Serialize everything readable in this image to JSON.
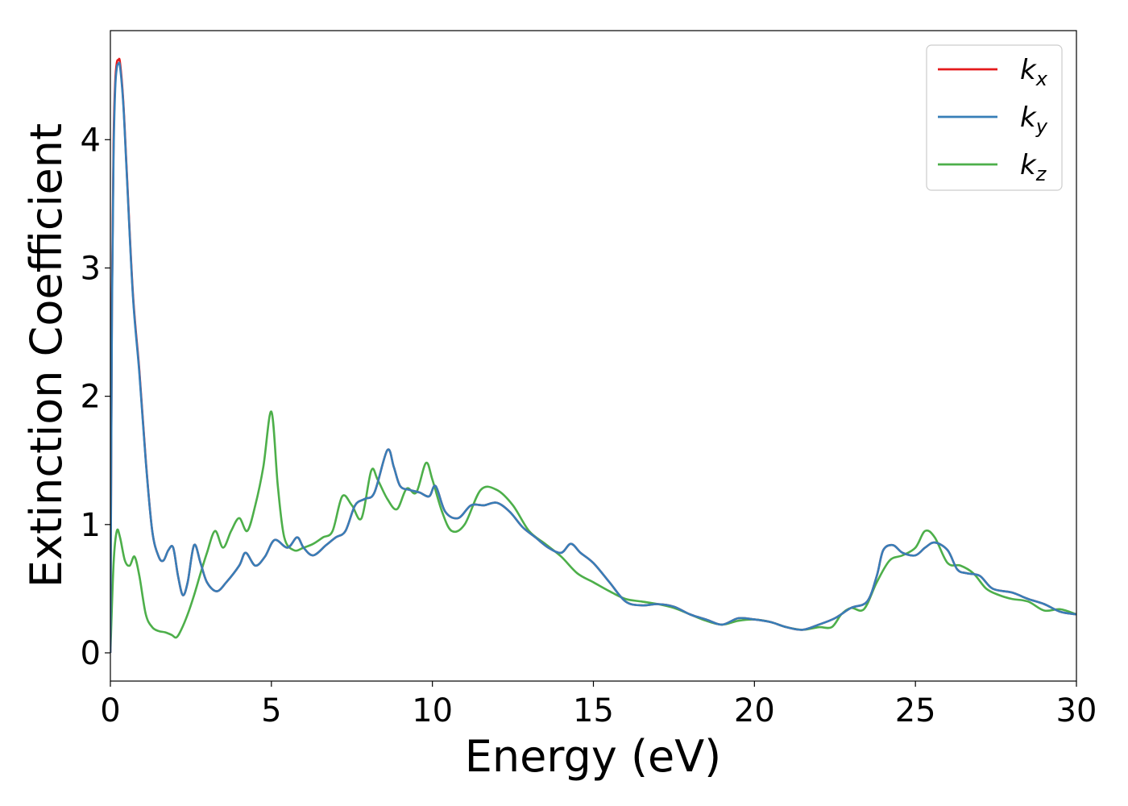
{
  "chart_data": {
    "type": "line",
    "title": "",
    "xlabel": "Energy (eV)",
    "ylabel": "Extinction Coefficient",
    "xlim": [
      0,
      30
    ],
    "ylim": [
      -0.22,
      4.85
    ],
    "xticks": [
      0,
      5,
      10,
      15,
      20,
      25,
      30
    ],
    "yticks": [
      0,
      1,
      2,
      3,
      4
    ],
    "grid": false,
    "legend": {
      "placement": "top-right",
      "entries": [
        {
          "base": "k",
          "sub": "x"
        },
        {
          "base": "k",
          "sub": "y"
        },
        {
          "base": "k",
          "sub": "z"
        }
      ]
    },
    "series": [
      {
        "name": "k_x",
        "color": "#e41a1c",
        "x": [
          0,
          0.05,
          0.1,
          0.15,
          0.2,
          0.25,
          0.3,
          0.4,
          0.5,
          0.7,
          0.9,
          1.1,
          1.3,
          1.5,
          1.65,
          1.8,
          1.95,
          2.1,
          2.25,
          2.4,
          2.6,
          2.8,
          3.0,
          3.3,
          3.6,
          4.0,
          4.2,
          4.5,
          4.8,
          5.1,
          5.5,
          5.8,
          6.0,
          6.3,
          6.7,
          7.0,
          7.3,
          7.6,
          7.9,
          8.2,
          8.6,
          8.8,
          9.0,
          9.3,
          9.6,
          9.9,
          10.1,
          10.4,
          10.8,
          11.2,
          11.6,
          12.0,
          12.4,
          12.8,
          13.2,
          13.6,
          14.0,
          14.3,
          14.6,
          15.0,
          15.5,
          16.0,
          16.5,
          17.0,
          17.5,
          18.0,
          18.5,
          19.0,
          19.5,
          20.0,
          20.5,
          21.0,
          21.5,
          22.0,
          22.5,
          23.0,
          23.5,
          23.8,
          24.0,
          24.3,
          24.6,
          25.0,
          25.3,
          25.6,
          26.0,
          26.3,
          26.6,
          27.0,
          27.4,
          28.0,
          28.5,
          29.0,
          29.5,
          30.0
        ],
        "y": [
          0,
          2.8,
          4.0,
          4.45,
          4.6,
          4.62,
          4.6,
          4.3,
          3.8,
          2.8,
          2.2,
          1.5,
          0.95,
          0.75,
          0.72,
          0.8,
          0.82,
          0.6,
          0.45,
          0.55,
          0.84,
          0.7,
          0.55,
          0.48,
          0.55,
          0.68,
          0.78,
          0.68,
          0.75,
          0.88,
          0.82,
          0.9,
          0.82,
          0.76,
          0.84,
          0.9,
          0.95,
          1.15,
          1.2,
          1.25,
          1.58,
          1.45,
          1.3,
          1.27,
          1.25,
          1.22,
          1.3,
          1.1,
          1.05,
          1.15,
          1.15,
          1.17,
          1.1,
          0.98,
          0.9,
          0.82,
          0.78,
          0.85,
          0.78,
          0.7,
          0.55,
          0.4,
          0.37,
          0.38,
          0.36,
          0.3,
          0.26,
          0.22,
          0.27,
          0.26,
          0.24,
          0.2,
          0.18,
          0.22,
          0.27,
          0.35,
          0.4,
          0.6,
          0.8,
          0.84,
          0.78,
          0.76,
          0.82,
          0.86,
          0.8,
          0.65,
          0.62,
          0.6,
          0.5,
          0.47,
          0.42,
          0.38,
          0.32,
          0.3
        ]
      },
      {
        "name": "k_y",
        "color": "#377eb8",
        "x": [
          0,
          0.05,
          0.1,
          0.15,
          0.2,
          0.25,
          0.3,
          0.4,
          0.5,
          0.7,
          0.9,
          1.1,
          1.3,
          1.5,
          1.65,
          1.8,
          1.95,
          2.1,
          2.25,
          2.4,
          2.6,
          2.8,
          3.0,
          3.3,
          3.6,
          4.0,
          4.2,
          4.5,
          4.8,
          5.1,
          5.5,
          5.8,
          6.0,
          6.3,
          6.7,
          7.0,
          7.3,
          7.6,
          7.9,
          8.2,
          8.6,
          8.8,
          9.0,
          9.3,
          9.6,
          9.9,
          10.1,
          10.4,
          10.8,
          11.2,
          11.6,
          12.0,
          12.4,
          12.8,
          13.2,
          13.6,
          14.0,
          14.3,
          14.6,
          15.0,
          15.5,
          16.0,
          16.5,
          17.0,
          17.5,
          18.0,
          18.5,
          19.0,
          19.5,
          20.0,
          20.5,
          21.0,
          21.5,
          22.0,
          22.5,
          23.0,
          23.5,
          23.8,
          24.0,
          24.3,
          24.6,
          25.0,
          25.3,
          25.6,
          26.0,
          26.3,
          26.6,
          27.0,
          27.4,
          28.0,
          28.5,
          29.0,
          29.5,
          30.0
        ],
        "y": [
          0,
          2.7,
          3.9,
          4.4,
          4.56,
          4.59,
          4.57,
          4.28,
          3.78,
          2.78,
          2.18,
          1.49,
          0.95,
          0.75,
          0.72,
          0.8,
          0.82,
          0.6,
          0.45,
          0.55,
          0.84,
          0.7,
          0.55,
          0.48,
          0.55,
          0.68,
          0.78,
          0.68,
          0.75,
          0.88,
          0.82,
          0.9,
          0.82,
          0.76,
          0.84,
          0.9,
          0.95,
          1.15,
          1.2,
          1.25,
          1.58,
          1.45,
          1.3,
          1.27,
          1.25,
          1.22,
          1.3,
          1.1,
          1.05,
          1.15,
          1.15,
          1.17,
          1.1,
          0.98,
          0.9,
          0.82,
          0.78,
          0.85,
          0.78,
          0.7,
          0.55,
          0.4,
          0.37,
          0.38,
          0.36,
          0.3,
          0.26,
          0.22,
          0.27,
          0.26,
          0.24,
          0.2,
          0.18,
          0.22,
          0.27,
          0.35,
          0.4,
          0.6,
          0.8,
          0.84,
          0.78,
          0.76,
          0.82,
          0.86,
          0.8,
          0.65,
          0.62,
          0.6,
          0.5,
          0.47,
          0.42,
          0.38,
          0.32,
          0.3
        ]
      },
      {
        "name": "k_z",
        "color": "#4daf4a",
        "x": [
          0,
          0.1,
          0.2,
          0.3,
          0.45,
          0.6,
          0.75,
          0.9,
          1.1,
          1.3,
          1.5,
          1.7,
          1.9,
          2.05,
          2.2,
          2.4,
          2.6,
          2.8,
          3.0,
          3.25,
          3.5,
          3.75,
          4.0,
          4.25,
          4.5,
          4.75,
          5.0,
          5.2,
          5.4,
          5.7,
          6.0,
          6.3,
          6.6,
          6.9,
          7.2,
          7.5,
          7.8,
          8.1,
          8.3,
          8.6,
          8.9,
          9.2,
          9.5,
          9.8,
          10.0,
          10.3,
          10.6,
          11.0,
          11.5,
          12.0,
          12.5,
          13.0,
          13.5,
          14.0,
          14.5,
          15.0,
          15.5,
          16.0,
          16.5,
          17.0,
          17.5,
          18.0,
          18.5,
          19.0,
          19.5,
          20.0,
          20.5,
          21.0,
          21.5,
          22.0,
          22.4,
          22.7,
          23.0,
          23.4,
          23.8,
          24.2,
          24.6,
          25.0,
          25.3,
          25.6,
          26.0,
          26.4,
          26.8,
          27.2,
          27.6,
          28.0,
          28.5,
          29.0,
          29.5,
          30.0
        ],
        "y": [
          0,
          0.7,
          0.95,
          0.9,
          0.72,
          0.68,
          0.75,
          0.6,
          0.3,
          0.2,
          0.17,
          0.16,
          0.14,
          0.12,
          0.18,
          0.3,
          0.45,
          0.62,
          0.78,
          0.95,
          0.82,
          0.95,
          1.05,
          0.95,
          1.15,
          1.45,
          1.88,
          1.3,
          0.9,
          0.8,
          0.82,
          0.85,
          0.9,
          0.95,
          1.22,
          1.15,
          1.05,
          1.42,
          1.35,
          1.2,
          1.12,
          1.28,
          1.25,
          1.48,
          1.35,
          1.1,
          0.95,
          1.0,
          1.27,
          1.27,
          1.15,
          0.95,
          0.85,
          0.75,
          0.62,
          0.55,
          0.48,
          0.42,
          0.4,
          0.38,
          0.35,
          0.3,
          0.25,
          0.22,
          0.25,
          0.26,
          0.24,
          0.2,
          0.18,
          0.2,
          0.2,
          0.3,
          0.35,
          0.34,
          0.55,
          0.72,
          0.76,
          0.82,
          0.95,
          0.9,
          0.7,
          0.68,
          0.62,
          0.5,
          0.45,
          0.42,
          0.4,
          0.33,
          0.34,
          0.3
        ]
      }
    ]
  }
}
